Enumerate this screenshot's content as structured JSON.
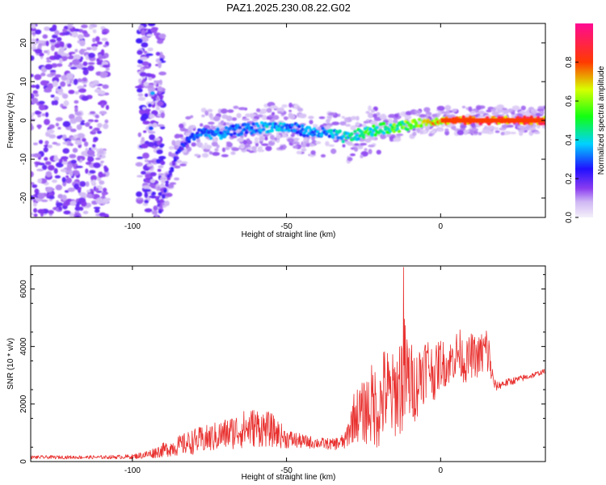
{
  "figure": {
    "title": "PAZ1.2025.230.08.22.G02"
  },
  "chart_data": [
    {
      "type": "heatmap",
      "xlabel": "Height of straight line (km)",
      "ylabel": "Frequency (Hz)",
      "xlim": [
        -133,
        34
      ],
      "ylim": [
        -25,
        25
      ],
      "xticks": [
        -100,
        -50,
        0
      ],
      "yticks": [
        -20,
        -10,
        0,
        10,
        20
      ],
      "colorbar": {
        "label": "Normalized spectral amplitude",
        "range": [
          0,
          1
        ],
        "ticks": [
          "0.0",
          "0.2",
          "0.4",
          "0.6",
          "0.8"
        ],
        "colormap": "rainbow (violet → blue → cyan → green → yellow → red → magenta)"
      },
      "ridge": {
        "x": [
          -91,
          -88,
          -85,
          -82,
          -78,
          -72,
          -66,
          -60,
          -54,
          -48,
          -42,
          -36,
          -30,
          -24,
          -18,
          -12,
          -6,
          0,
          6,
          12,
          18,
          24,
          30,
          34
        ],
        "y": [
          -23,
          -14,
          -8,
          -5,
          -3,
          -3.5,
          -2.5,
          -2,
          -1.5,
          -2,
          -3,
          -3.5,
          -4.5,
          -3,
          -2,
          -1.5,
          -0.5,
          0,
          0,
          0,
          0,
          0,
          0,
          0
        ],
        "amplitude": [
          0.18,
          0.2,
          0.22,
          0.28,
          0.3,
          0.32,
          0.3,
          0.34,
          0.36,
          0.3,
          0.32,
          0.35,
          0.42,
          0.48,
          0.5,
          0.55,
          0.6,
          0.68,
          0.75,
          0.8,
          0.82,
          0.85,
          0.85,
          0.85
        ]
      },
      "noise_bands": [
        {
          "x_range": [
            -133,
            -108
          ],
          "y_range": [
            -25,
            25
          ],
          "amplitude": 0.1
        },
        {
          "x_range": [
            -98,
            -90
          ],
          "y_range": [
            -25,
            25
          ],
          "amplitude": 0.12
        }
      ]
    },
    {
      "type": "line",
      "xlabel": "Height of straight line (km)",
      "ylabel": "SNR (10 * v/v)",
      "xlim": [
        -133,
        34
      ],
      "ylim": [
        0,
        6800
      ],
      "xticks": [
        -100,
        -50,
        0
      ],
      "yticks": [
        0,
        2000,
        4000,
        6000
      ],
      "color": "#e8312f",
      "envelope": {
        "x": [
          -133,
          -110,
          -100,
          -95,
          -90,
          -85,
          -80,
          -75,
          -70,
          -65,
          -60,
          -55,
          -50,
          -45,
          -40,
          -35,
          -31,
          -28,
          -25,
          -22,
          -20,
          -18,
          -16,
          -14,
          -12,
          -10,
          -8,
          -6,
          -4,
          -2,
          0,
          2,
          4,
          6,
          8,
          10,
          12,
          14,
          15,
          16,
          17,
          18,
          20,
          25,
          30,
          34
        ],
        "mean": [
          150,
          150,
          170,
          250,
          400,
          550,
          700,
          800,
          950,
          1100,
          1200,
          1100,
          800,
          700,
          650,
          600,
          700,
          1600,
          1700,
          2000,
          1800,
          2500,
          2200,
          2500,
          3000,
          2800,
          2600,
          3200,
          3400,
          3000,
          3500,
          3300,
          3600,
          3800,
          3400,
          3700,
          3600,
          3800,
          3900,
          3500,
          2800,
          2600,
          2700,
          2850,
          3000,
          3150
        ],
        "amp": [
          60,
          60,
          80,
          150,
          250,
          350,
          450,
          500,
          550,
          650,
          700,
          600,
          350,
          250,
          200,
          200,
          300,
          900,
          1100,
          1500,
          1400,
          1700,
          1500,
          1600,
          2200,
          1500,
          1200,
          1300,
          1000,
          900,
          900,
          700,
          800,
          900,
          700,
          800,
          700,
          900,
          1000,
          700,
          300,
          150,
          150,
          120,
          100,
          80
        ]
      },
      "peak": {
        "x": -12,
        "y": 6750
      }
    }
  ]
}
